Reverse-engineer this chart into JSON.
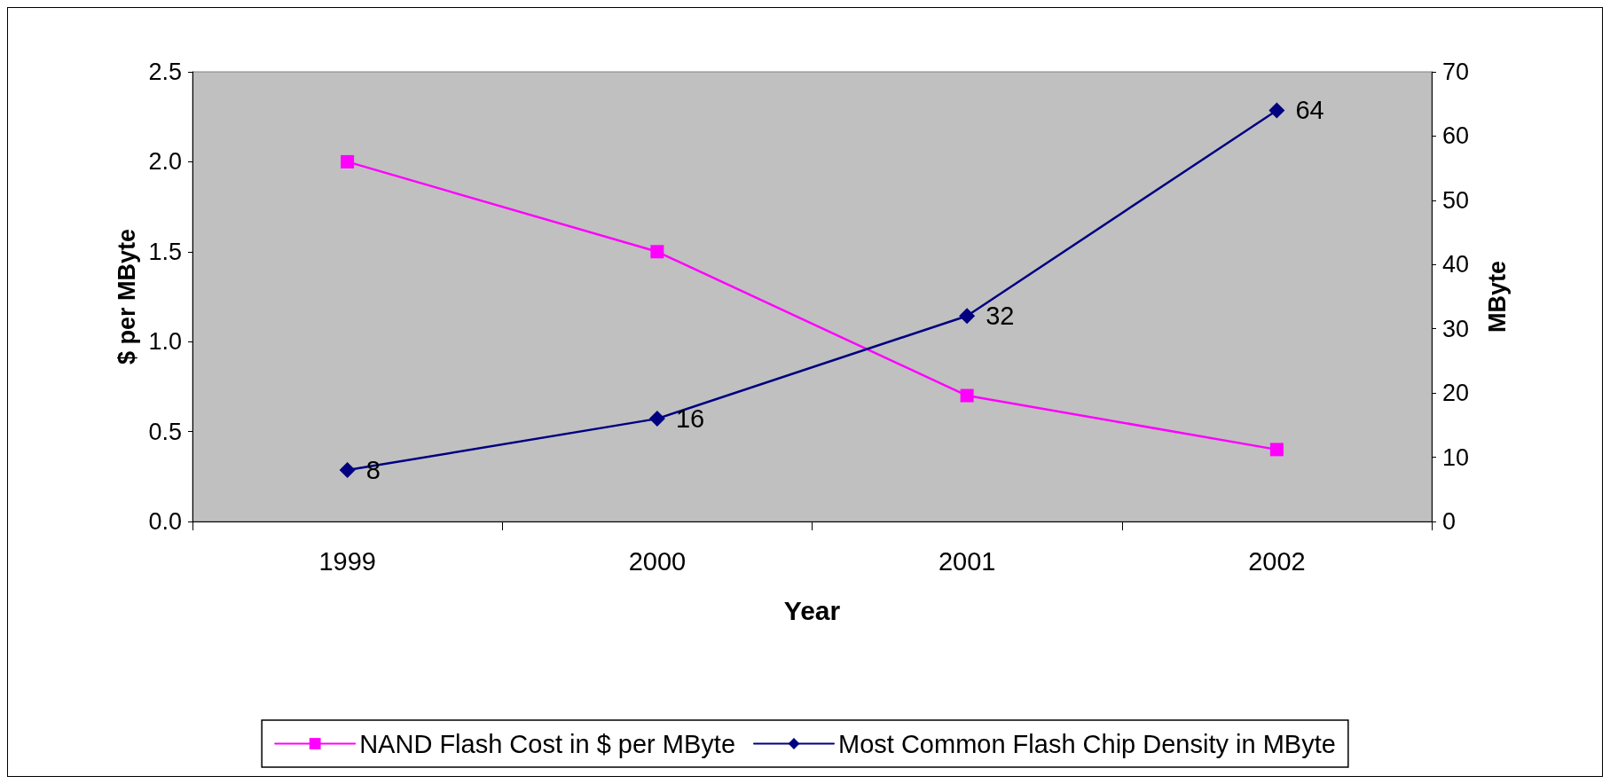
{
  "chart_data": {
    "type": "line",
    "xlabel": "Year",
    "ylabel": "$ per MByte",
    "y2label": "MByte",
    "categories": [
      "1999",
      "2000",
      "2001",
      "2002"
    ],
    "series": [
      {
        "name": "NAND Flash Cost in $ per MByte",
        "color": "#ff00ff",
        "marker": "square",
        "values": [
          2.0,
          1.5,
          0.7,
          0.4
        ]
      },
      {
        "name": "Most Common Flash Chip Density in MByte",
        "color": "#000080",
        "marker": "diamond",
        "axis": "y2",
        "values": [
          8,
          16,
          32,
          64
        ],
        "value_labels": [
          "8",
          "16",
          "32",
          "64"
        ]
      }
    ],
    "ylim": [
      0,
      2.5
    ],
    "yticks": [
      {
        "value": 0,
        "label": "0.0"
      },
      {
        "value": 0.5,
        "label": "0.5"
      },
      {
        "value": 1,
        "label": "1.0"
      },
      {
        "value": 1.5,
        "label": "1.5"
      },
      {
        "value": 2,
        "label": "2.0"
      },
      {
        "value": 2.5,
        "label": "2.5"
      }
    ],
    "y2lim": [
      0,
      70
    ],
    "y2ticks": [
      0,
      10,
      20,
      30,
      40,
      50,
      60,
      70
    ],
    "grid": false,
    "legend": "bottom",
    "line_style": "solid"
  }
}
